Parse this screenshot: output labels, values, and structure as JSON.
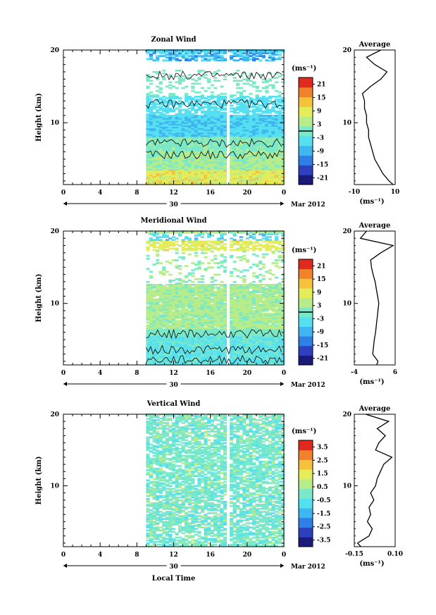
{
  "xaxis": {
    "ticks": [
      "0",
      "4",
      "8",
      "12",
      "16",
      "20",
      "0"
    ],
    "tick_values": [
      0,
      4,
      8,
      12,
      16,
      20,
      24
    ],
    "day_label": "30",
    "month_label": "Mar 2012",
    "xlabel": "Local Time"
  },
  "colors": {
    "scale": [
      "#1a1a7a",
      "#2e3fc0",
      "#2f7fe6",
      "#3fb6f0",
      "#55e0f2",
      "#7be8c8",
      "#b6ec8a",
      "#e4ec5a",
      "#f5c23c",
      "#f0822c",
      "#e02a1e"
    ]
  },
  "chart_data": [
    {
      "type": "heatmap",
      "title": "Zonal Wind",
      "ylabel": "Height (km)",
      "xlim": [
        0,
        24
      ],
      "ylim": [
        1.5,
        20
      ],
      "yticks": [
        "10",
        "20"
      ],
      "data_start_hour": 9,
      "data_gap_hours": [
        17.5,
        18.0
      ],
      "colorbar": {
        "unit": "(ms⁻¹)",
        "ticks": [
          "21",
          "15",
          "9",
          "3",
          "-3",
          "-9",
          "-15",
          "-21"
        ],
        "range": [
          -24,
          24
        ]
      },
      "profile": {
        "title": "Average",
        "xlabel": "(ms⁻¹)",
        "xticks": [
          "-10",
          "10"
        ],
        "xlim": [
          -10,
          10
        ],
        "height": [
          1.5,
          2,
          3,
          4,
          5,
          6,
          7,
          8,
          9,
          10,
          11,
          12,
          13,
          14,
          15,
          16,
          17,
          18,
          19,
          20
        ],
        "values": [
          9,
          7,
          4,
          2,
          0,
          -1,
          -2,
          -3,
          -3,
          -4,
          -4,
          -5,
          -5,
          -6,
          -2,
          3,
          6,
          0,
          -4,
          3
        ]
      }
    },
    {
      "type": "heatmap",
      "title": "Meridional Wind",
      "ylabel": "Height (km)",
      "xlim": [
        0,
        24
      ],
      "ylim": [
        1.5,
        20
      ],
      "yticks": [
        "10",
        "20"
      ],
      "data_start_hour": 9,
      "data_gap_hours": [
        17.5,
        18.0
      ],
      "colorbar": {
        "unit": "(ms⁻¹)",
        "ticks": [
          "21",
          "15",
          "9",
          "3",
          "-3",
          "-9",
          "-15",
          "-21"
        ],
        "range": [
          -24,
          24
        ]
      },
      "profile": {
        "title": "Average",
        "xlabel": "(ms⁻¹)",
        "xticks": [
          "-4",
          "6"
        ],
        "xlim": [
          -4,
          6
        ],
        "height": [
          1.5,
          2,
          3,
          4,
          5,
          6,
          7,
          8,
          9,
          10,
          11,
          12,
          13,
          14,
          15,
          16,
          17,
          18,
          19,
          20
        ],
        "values": [
          1.5,
          1.8,
          0.5,
          0.7,
          0.9,
          1.2,
          1.4,
          1.6,
          1.8,
          2.0,
          1.7,
          1.4,
          1.1,
          0.6,
          0.2,
          0.0,
          2.5,
          5.5,
          -2.5,
          -1.0
        ]
      }
    },
    {
      "type": "heatmap",
      "title": "Vertical Wind",
      "ylabel": "Height (km)",
      "xlim": [
        0,
        24
      ],
      "ylim": [
        1.5,
        20
      ],
      "yticks": [
        "10",
        "20"
      ],
      "data_start_hour": 9,
      "data_gap_hours": [
        17.5,
        18.0
      ],
      "colorbar": {
        "unit": "(ms⁻¹)",
        "ticks": [
          "3.5",
          "2.5",
          "1.5",
          "0.5",
          "-0.5",
          "-1.5",
          "-2.5",
          "-3.5"
        ],
        "range": [
          -4,
          4
        ]
      },
      "profile": {
        "title": "Average",
        "xlabel": "(ms⁻¹)",
        "xticks": [
          "-0.15",
          "0.10"
        ],
        "xlim": [
          -0.15,
          0.1
        ],
        "height": [
          1.5,
          2,
          3,
          4,
          5,
          6,
          7,
          8,
          9,
          10,
          11,
          12,
          13,
          14,
          15,
          16,
          17,
          18,
          19,
          20
        ],
        "values": [
          -0.11,
          -0.13,
          -0.06,
          -0.04,
          -0.07,
          -0.05,
          -0.06,
          -0.03,
          -0.05,
          -0.02,
          -0.01,
          0.01,
          0.03,
          0.08,
          -0.02,
          0.0,
          0.04,
          -0.01,
          0.06,
          -0.08
        ]
      }
    }
  ]
}
